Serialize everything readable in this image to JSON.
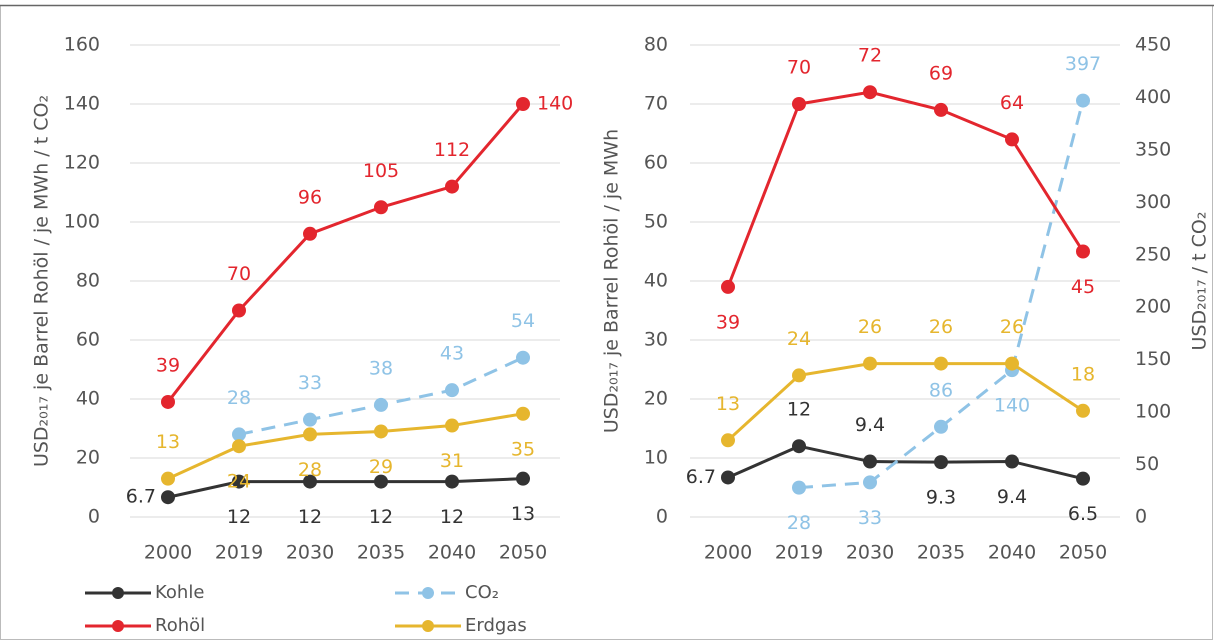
{
  "chart_data": [
    {
      "type": "line",
      "y_label": "USD₂₀₁₇ je Barrel Rohöl / je MWh / t CO₂",
      "categories": [
        "2000",
        "2019",
        "2030",
        "2035",
        "2040",
        "2050"
      ],
      "ylim": [
        0,
        160
      ],
      "yticks": [
        0,
        20,
        40,
        60,
        80,
        100,
        120,
        140,
        160
      ],
      "grid": true,
      "series": [
        {
          "name": "Kohle",
          "color": "#333333",
          "values": [
            6.7,
            12,
            12,
            12,
            12,
            13
          ]
        },
        {
          "name": "CO₂",
          "color": "#8fc3e6",
          "dashed": true,
          "values": [
            null,
            28,
            33,
            38,
            43,
            54
          ]
        },
        {
          "name": "Rohöl",
          "color": "#e3262e",
          "values": [
            39,
            70,
            96,
            105,
            112,
            140
          ]
        },
        {
          "name": "Erdgas",
          "color": "#e6b62e",
          "values": [
            13,
            24,
            28,
            29,
            31,
            35
          ]
        }
      ]
    },
    {
      "type": "line",
      "y_label": "USD₂₀₁₇ je Barrel Rohöl / je MWh",
      "y2_label": "USD₂₀₁₇ / t CO₂",
      "categories": [
        "2000",
        "2019",
        "2030",
        "2035",
        "2040",
        "2050"
      ],
      "ylim": [
        0,
        80
      ],
      "yticks": [
        0,
        10,
        20,
        30,
        40,
        50,
        60,
        70,
        80
      ],
      "grid": true,
      "y2lim": [
        0,
        450
      ],
      "y2ticks": [
        0,
        50,
        100,
        150,
        200,
        250,
        300,
        350,
        400,
        450
      ],
      "series": [
        {
          "color": "#333333",
          "values": [
            6.7,
            12,
            9.4,
            9.3,
            9.4,
            6.5
          ]
        },
        {
          "color": "#8fc3e6",
          "dashed": true,
          "axis": "y2",
          "values": [
            null,
            28,
            33,
            86,
            140,
            397
          ]
        },
        {
          "color": "#e3262e",
          "values": [
            39,
            70,
            72,
            69,
            64,
            45
          ]
        },
        {
          "color": "#e6b62e",
          "values": [
            13,
            24,
            26,
            26,
            26,
            18
          ]
        }
      ]
    }
  ]
}
